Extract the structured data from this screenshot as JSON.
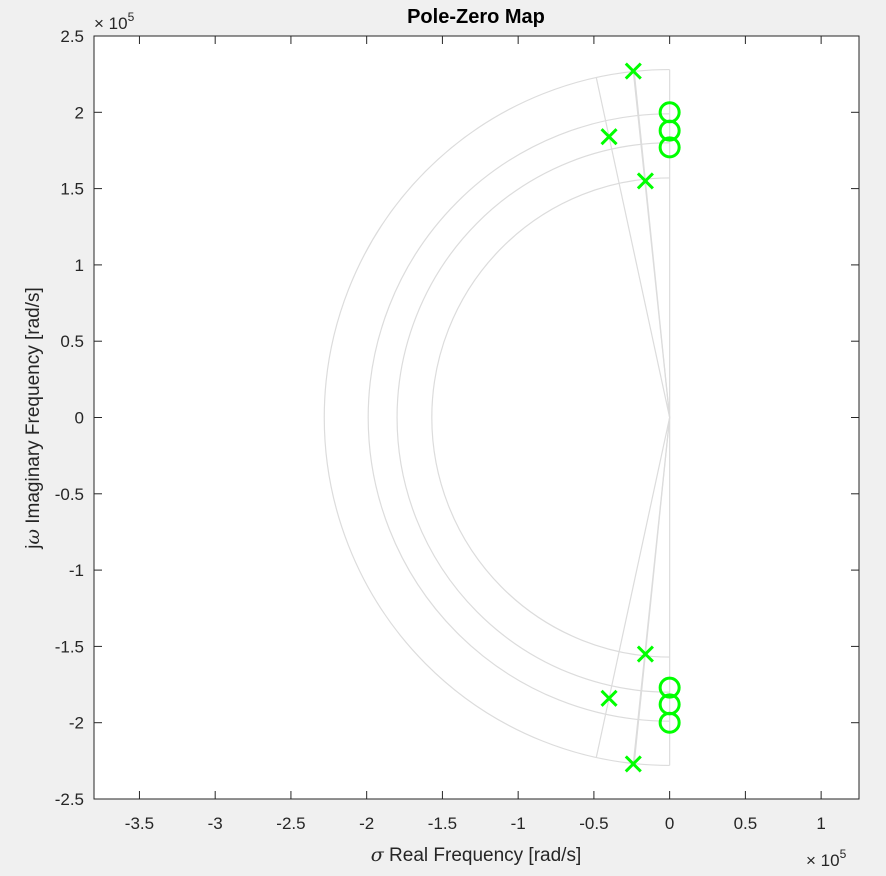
{
  "chart_data": {
    "type": "scatter",
    "title": "Pole-Zero Map",
    "xlabel_symbol": "σ",
    "xlabel": "Real Frequency [rad/s]",
    "ylabel_prefix": "j",
    "ylabel_symbol": "ω",
    "ylabel": "Imaginary Frequency [rad/s]",
    "x_multiplier": {
      "base": "× 10",
      "exp": "5"
    },
    "y_multiplier": {
      "base": "× 10",
      "exp": "5"
    },
    "xlim": [
      -3.8,
      1.25
    ],
    "ylim": [
      -2.5,
      2.5
    ],
    "xticks": [
      -3.5,
      -3,
      -2.5,
      -2,
      -1.5,
      -1,
      -0.5,
      0,
      0.5,
      1
    ],
    "xtick_labels": [
      "-3.5",
      "-3",
      "-2.5",
      "-2",
      "-1.5",
      "-1",
      "-0.5",
      "0",
      "0.5",
      "1"
    ],
    "yticks": [
      2.5,
      2,
      1.5,
      1,
      0.5,
      0,
      -0.5,
      -1,
      -1.5,
      -2,
      -2.5
    ],
    "ytick_labels": [
      "2.5",
      "2",
      "1.5",
      "1",
      "0.5",
      "0",
      "-0.5",
      "-1",
      "-1.5",
      "-2",
      "-2.5"
    ],
    "grid": "s-plane damping/frequency grid",
    "marker_color": "#00ff00",
    "grid_color": "#dcdcdc",
    "poles": [
      {
        "re": -0.24,
        "im": 2.27
      },
      {
        "re": -0.4,
        "im": 1.84
      },
      {
        "re": -0.16,
        "im": 1.55
      },
      {
        "re": -0.16,
        "im": -1.55
      },
      {
        "re": -0.4,
        "im": -1.84
      },
      {
        "re": -0.24,
        "im": -2.27
      }
    ],
    "zeros": [
      {
        "re": 0,
        "im": 2.0
      },
      {
        "re": 0,
        "im": 1.88
      },
      {
        "re": 0,
        "im": 1.77
      },
      {
        "re": 0,
        "im": -1.77
      },
      {
        "re": 0,
        "im": -1.88
      },
      {
        "re": 0,
        "im": -2.0
      }
    ],
    "frequency_grid_radii": [
      1.57,
      1.8,
      1.99,
      2.28
    ],
    "damping_grid_angles_deg": [
      84.0,
      77.8,
      84.0
    ],
    "damping_grid_ref_points": [
      {
        "re": -0.16,
        "im": 1.55
      },
      {
        "re": -0.4,
        "im": 1.84
      },
      {
        "re": -0.24,
        "im": 2.27
      }
    ]
  }
}
